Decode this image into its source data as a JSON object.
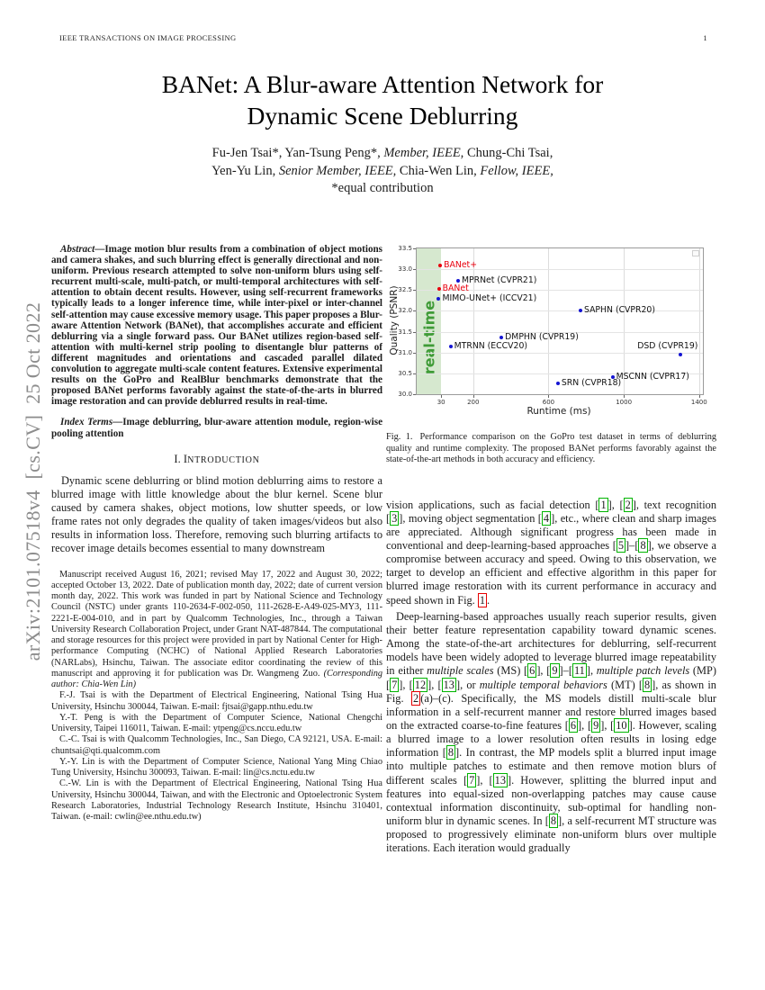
{
  "header": {
    "journal": "IEEE TRANSACTIONS ON IMAGE PROCESSING",
    "page": "1"
  },
  "sidebar": {
    "arxiv_label": "arXiv:2101.07518v4  [cs.CV]  25 Oct 2022"
  },
  "title": {
    "line1": "BANet: A Blur-aware Attention Network for",
    "line2": "Dynamic Scene Deblurring"
  },
  "authors": {
    "line1": [
      {
        "t": "Fu-Jen Tsai*, Yan-Tsung Peng*, "
      },
      {
        "t": "Member, IEEE,",
        "i": true
      },
      {
        "t": " Chung-Chi Tsai,"
      }
    ],
    "line2": [
      {
        "t": "Yen-Yu Lin, "
      },
      {
        "t": "Senior Member, IEEE,",
        "i": true
      },
      {
        "t": " Chia-Wen Lin, "
      },
      {
        "t": "Fellow, IEEE,",
        "i": true
      }
    ],
    "line3": [
      {
        "t": "*equal contribution"
      }
    ]
  },
  "abstract": {
    "runs": [
      {
        "t": "Abstract",
        "b": true,
        "i": true
      },
      {
        "t": "—Image motion blur results from a combination of object motions and camera shakes, and such blurring effect is generally directional and non-uniform. Previous research attempted to solve non-uniform blurs using self-recurrent multi-scale, multi-patch, or multi-temporal architectures with self-attention to obtain decent results. However, using self-recurrent frameworks typically leads to a longer inference time, while inter-pixel or inter-channel self-attention may cause excessive memory usage. This paper proposes a Blur-aware Attention Network (BANet), that accomplishes accurate and efficient deblurring via a single forward pass. Our BANet utilizes region-based self-attention with multi-kernel strip pooling to disentangle blur patterns of different magnitudes and orientations and cascaded parallel dilated convolution to aggregate multi-scale content features. Extensive experimental results on the GoPro and RealBlur benchmarks demonstrate that the proposed BANet performs favorably against the state-of-the-arts in blurred image restoration and can provide deblurred results in real-time.",
        "b": true
      }
    ]
  },
  "index_terms": {
    "runs": [
      {
        "t": "Index Terms",
        "b": true,
        "i": true
      },
      {
        "t": "—Image deblurring, blur-aware attention module, region-wise pooling attention",
        "b": true
      }
    ]
  },
  "sections": {
    "intro_heading": [
      {
        "t": "I. I"
      },
      {
        "t": "ntroduction",
        "sc": true
      }
    ]
  },
  "intro": {
    "p1": [
      {
        "t": "Dynamic scene deblurring or blind motion deblurring aims to restore a blurred image with little knowledge about the blur kernel. Scene blur caused by camera shakes, object motions, low shutter speeds, or low frame rates not only degrades the quality of taken images/videos but also results in information loss. Therefore, removing such blurring artifacts to recover image details becomes essential to many downstream"
      }
    ]
  },
  "footnotes": [
    [
      {
        "t": "Manuscript received August 16, 2021; revised May 17, 2022 and August 30, 2022; accepted October 13, 2022. Date of publication month day, 2022; date of current version month day, 2022. This work was funded in part by National Science and Technology Council (NSTC) under grants 110-2634-F-002-050, 111-2628-E-A49-025-MY3, 111-2221-E-004-010, and in part by Qualcomm Technologies, Inc., through a Taiwan University Research Collaboration Project, under Grant NAT-487844. The computational and storage resources for this project were provided in part by National Center for High-performance Computing (NCHC) of National Applied Research Laboratories (NARLabs), Hsinchu, Taiwan. The associate editor coordinating the review of this manuscript and approving it for publication was Dr. Wangmeng Zuo. "
      },
      {
        "t": "(Corresponding author: Chia-Wen Lin)",
        "i": true
      }
    ],
    [
      {
        "t": "F.-J. Tsai is with the Department of Electrical Engineering, National Tsing Hua University, Hsinchu 300044, Taiwan. E-mail: fjtsai@gapp.nthu.edu.tw"
      }
    ],
    [
      {
        "t": "Y.-T. Peng is with the Department of Computer Science, National Chengchi University, Taipei 116011, Taiwan. E-mail: ytpeng@cs.nccu.edu.tw"
      }
    ],
    [
      {
        "t": "C.-C. Tsai is with Qualcomm Technologies, Inc., San Diego, CA 92121, USA. E-mail: chuntsai@qti.qualcomm.com"
      }
    ],
    [
      {
        "t": "Y.-Y. Lin is with the Department of Computer Science, National Yang Ming Chiao Tung University, Hsinchu 300093, Taiwan. E-mail: lin@cs.nctu.edu.tw"
      }
    ],
    [
      {
        "t": "C.-W. Lin is with the Department of Electrical Engineering, National Tsing Hua University, Hsinchu 300044, Taiwan, and with the Electronic and Optoelectronic System Research Laboratories, Industrial Technology Research Institute, Hsinchu 310401, Taiwan. (e-mail: cwlin@ee.nthu.edu.tw)"
      }
    ]
  ],
  "figure1": {
    "label": "Fig. 1.",
    "caption": "Performance comparison on the GoPro test dataset in terms of deblurring quality and runtime complexity. The proposed BANet performs favorably against the state-of-the-art methods in both accuracy and efficiency."
  },
  "right": {
    "p1": [
      {
        "t": "vision applications, such as facial detection ["
      },
      {
        "t": "1",
        "box": "green"
      },
      {
        "t": "], ["
      },
      {
        "t": "2",
        "box": "green"
      },
      {
        "t": "], text recognition ["
      },
      {
        "t": "3",
        "box": "green"
      },
      {
        "t": "], moving object segmentation ["
      },
      {
        "t": "4",
        "box": "green"
      },
      {
        "t": "], etc., where clean and sharp images are appreciated. Although significant progress has been made in conventional and deep-learning-based approaches ["
      },
      {
        "t": "5",
        "box": "green"
      },
      {
        "t": "]–["
      },
      {
        "t": "8",
        "box": "green"
      },
      {
        "t": "], we observe a compromise between accuracy and speed. Owing to this observation, we target to develop an efficient and effective algorithm in this paper for blurred image restoration with its current performance in accuracy and speed shown in Fig. "
      },
      {
        "t": "1",
        "box": "red"
      },
      {
        "t": "."
      }
    ],
    "p2": [
      {
        "t": "Deep-learning-based approaches usually reach superior results, given their better feature representation capability toward dynamic scenes. Among the state-of-the-art architectures for deblurring, self-recurrent models have been widely adopted to leverage blurred image repeatability in either "
      },
      {
        "t": "multiple scales",
        "i": true
      },
      {
        "t": " (MS) ["
      },
      {
        "t": "6",
        "box": "green"
      },
      {
        "t": "], ["
      },
      {
        "t": "9",
        "box": "green"
      },
      {
        "t": "]–["
      },
      {
        "t": "11",
        "box": "green"
      },
      {
        "t": "], "
      },
      {
        "t": "multiple patch levels",
        "i": true
      },
      {
        "t": " (MP) ["
      },
      {
        "t": "7",
        "box": "green"
      },
      {
        "t": "], ["
      },
      {
        "t": "12",
        "box": "green"
      },
      {
        "t": "], ["
      },
      {
        "t": "13",
        "box": "green"
      },
      {
        "t": "], or "
      },
      {
        "t": "multiple temporal behaviors",
        "i": true
      },
      {
        "t": " (MT) ["
      },
      {
        "t": "8",
        "box": "green"
      },
      {
        "t": "], as shown in Fig. "
      },
      {
        "t": "2",
        "box": "red"
      },
      {
        "t": "(a)–(c). Specifically, the MS models distill multi-scale blur information in a self-recurrent manner and restore blurred images based on the extracted coarse-to-fine features ["
      },
      {
        "t": "6",
        "box": "green"
      },
      {
        "t": "], ["
      },
      {
        "t": "9",
        "box": "green"
      },
      {
        "t": "], ["
      },
      {
        "t": "10",
        "box": "green"
      },
      {
        "t": "]. However, scaling a blurred image to a lower resolution often results in losing edge information ["
      },
      {
        "t": "8",
        "box": "green"
      },
      {
        "t": "]. In contrast, the MP models split a blurred input image into multiple patches to estimate and then remove motion blurs of different scales ["
      },
      {
        "t": "7",
        "box": "green"
      },
      {
        "t": "], ["
      },
      {
        "t": "13",
        "box": "green"
      },
      {
        "t": "]. However, splitting the blurred input and features into equal-sized non-overlapping patches may cause cause contextual information discontinuity, sub-optimal for handling non-uniform blur in dynamic scenes. In ["
      },
      {
        "t": "8",
        "box": "green"
      },
      {
        "t": "], a self-recurrent MT structure was proposed to progressively eliminate non-uniform blurs over multiple iterations. Each iteration would gradually"
      }
    ]
  },
  "chart_data": {
    "type": "scatter",
    "title": "",
    "xlabel": "Runtime (ms)",
    "ylabel": "Quality (PSNR)",
    "xlim": [
      -100,
      1420
    ],
    "ylim": [
      30.0,
      33.5
    ],
    "x_ticks": [
      30,
      200,
      600,
      1000,
      1400
    ],
    "y_ticks": [
      30.0,
      30.5,
      31.0,
      31.5,
      32.0,
      32.5,
      33.0,
      33.5
    ],
    "grid": true,
    "legend_position": "none",
    "realtime_band": {
      "label": "real-time",
      "to_ms": 30,
      "fill": "#d6e8cf",
      "text_color": "#3f9b37"
    },
    "points": [
      {
        "label": "BANet+",
        "runtime_ms": 25,
        "psnr": 33.1,
        "highlight": true
      },
      {
        "label": "BANet",
        "runtime_ms": 18,
        "psnr": 32.53,
        "highlight": true
      },
      {
        "label": "MPRNet (CVPR21)",
        "runtime_ms": 120,
        "psnr": 32.73
      },
      {
        "label": "MIMO-UNet+ (ICCV21)",
        "runtime_ms": 17,
        "psnr": 32.3
      },
      {
        "label": "SAPHN (CVPR20)",
        "runtime_ms": 770,
        "psnr": 32.02
      },
      {
        "label": "DMPHN (CVPR19)",
        "runtime_ms": 350,
        "psnr": 31.36
      },
      {
        "label": "MTRNN (ECCV20)",
        "runtime_ms": 80,
        "psnr": 31.15
      },
      {
        "label": "DSD (CVPR19)",
        "runtime_ms": 1300,
        "psnr": 30.96,
        "label_pos": "above"
      },
      {
        "label": "MSCNN (CVPR17)",
        "runtime_ms": 940,
        "psnr": 30.42
      },
      {
        "label": "SRN (CVPR18)",
        "runtime_ms": 650,
        "psnr": 30.25
      }
    ],
    "colors": {
      "default_dot": "#1414d2",
      "highlight": "#e8000d",
      "label": "#111111"
    }
  }
}
